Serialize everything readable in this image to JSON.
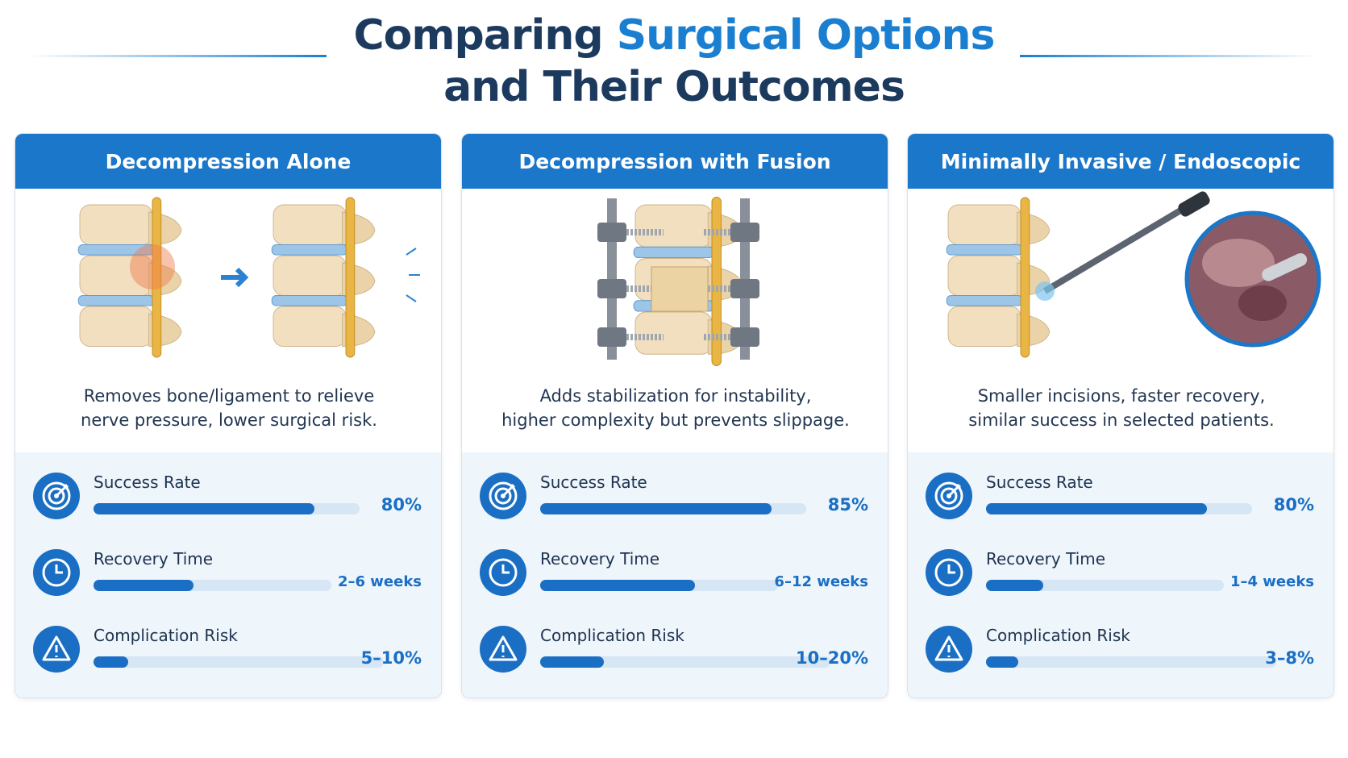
{
  "header": {
    "title_start": "Comparing",
    "title_highlight": "Surgical Options",
    "title_line2": "and Their Outcomes"
  },
  "cards": [
    {
      "title": "Decompression Alone",
      "description": [
        "Removes bone/ligament to relieve",
        "nerve pressure, lower surgical risk."
      ],
      "metrics": [
        {
          "label": "Success Rate",
          "value": "80%"
        },
        {
          "label": "Recovery Time",
          "value": "2–6 weeks"
        },
        {
          "label": "Complication Risk",
          "value": "5–10%"
        }
      ]
    },
    {
      "title": "Decompression with Fusion",
      "description": [
        "Adds stabilization for instability,",
        "higher complexity but prevents slippage."
      ],
      "metrics": [
        {
          "label": "Success Rate",
          "value": "85%"
        },
        {
          "label": "Recovery Time",
          "value": "6–12 weeks"
        },
        {
          "label": "Complication Risk",
          "value": "10–20%"
        }
      ]
    },
    {
      "title": "Minimally Invasive / Endoscopic",
      "description": [
        "Smaller incisions, faster recovery,",
        "similar success in selected patients."
      ],
      "metrics": [
        {
          "label": "Success Rate",
          "value": "80%"
        },
        {
          "label": "Recovery Time",
          "value": "1–4 weeks"
        },
        {
          "label": "Complication Risk",
          "value": "3–8%"
        }
      ]
    }
  ]
}
